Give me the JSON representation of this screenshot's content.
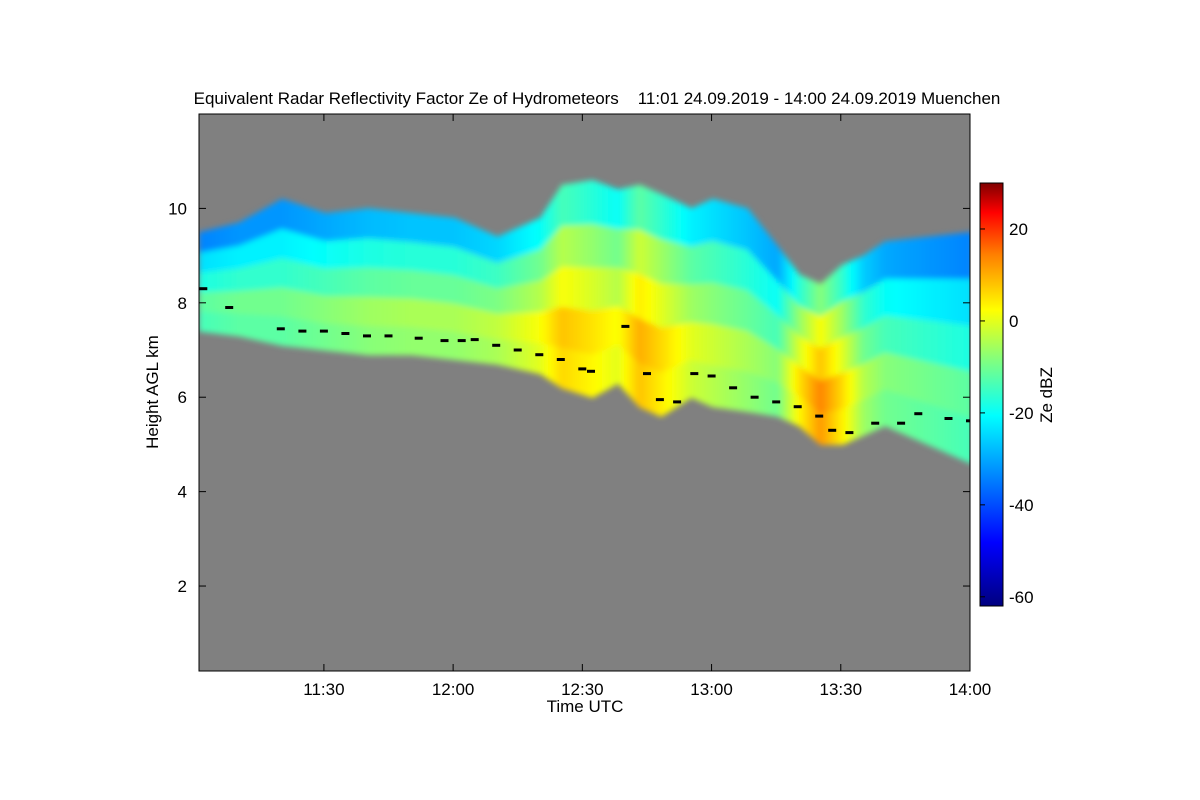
{
  "chart_data": {
    "type": "heatmap",
    "title": "Equivalent Radar Reflectivity Factor Ze of Hydrometeors    11:01 24.09.2019 - 14:00 24.09.2019 Muenchen",
    "xlabel": "Time UTC",
    "ylabel": "Height AGL km",
    "x_ticks": [
      "11:30",
      "12:00",
      "12:30",
      "13:00",
      "13:30",
      "14:00"
    ],
    "x_tick_minutes": [
      690,
      720,
      750,
      780,
      810,
      840
    ],
    "xlim_minutes": [
      661,
      840
    ],
    "y_ticks": [
      2,
      4,
      6,
      8,
      10
    ],
    "ylim": [
      0.2,
      12
    ],
    "colorbar": {
      "label": "Ze dBZ",
      "ticks": [
        20,
        0,
        -20,
        -40,
        -60
      ],
      "range": [
        -62,
        30
      ]
    },
    "colors": {
      "background": "#808080",
      "melting_layer": "#000000"
    },
    "cloud_profile": {
      "time_min": [
        661,
        670,
        680,
        690,
        700,
        710,
        720,
        730,
        740,
        745,
        752,
        758,
        763,
        768,
        775,
        780,
        788,
        795,
        800,
        805,
        810,
        815,
        820,
        830,
        840
      ],
      "top_km": [
        9.5,
        9.7,
        10.2,
        9.9,
        10.0,
        9.9,
        9.8,
        9.4,
        9.8,
        10.5,
        10.6,
        10.4,
        10.5,
        10.3,
        10.0,
        10.2,
        10.0,
        9.2,
        8.6,
        8.4,
        8.8,
        9.0,
        9.3,
        9.4,
        9.5
      ],
      "base_km": [
        7.4,
        7.3,
        7.1,
        7.0,
        6.9,
        6.9,
        6.8,
        6.7,
        6.5,
        6.2,
        6.0,
        6.3,
        5.8,
        5.6,
        6.0,
        5.8,
        5.7,
        5.6,
        5.4,
        5.0,
        5.0,
        5.2,
        5.4,
        5.0,
        4.6
      ],
      "ze_dbz": [
        -12,
        -10,
        -10,
        -8,
        -6,
        -5,
        -5,
        -3,
        2,
        8,
        5,
        2,
        10,
        6,
        0,
        -2,
        -5,
        -8,
        5,
        14,
        6,
        -4,
        -8,
        -10,
        -12
      ]
    },
    "melting_layer_km": [
      [
        662,
        8.3
      ],
      [
        668,
        7.9
      ],
      [
        680,
        7.45
      ],
      [
        685,
        7.4
      ],
      [
        690,
        7.4
      ],
      [
        695,
        7.35
      ],
      [
        700,
        7.3
      ],
      [
        705,
        7.3
      ],
      [
        712,
        7.25
      ],
      [
        718,
        7.2
      ],
      [
        722,
        7.2
      ],
      [
        725,
        7.22
      ],
      [
        730,
        7.1
      ],
      [
        735,
        7.0
      ],
      [
        740,
        6.9
      ],
      [
        745,
        6.8
      ],
      [
        750,
        6.6
      ],
      [
        752,
        6.55
      ],
      [
        760,
        7.5
      ],
      [
        765,
        6.5
      ],
      [
        768,
        5.95
      ],
      [
        772,
        5.9
      ],
      [
        776,
        6.5
      ],
      [
        780,
        6.45
      ],
      [
        785,
        6.2
      ],
      [
        790,
        6.0
      ],
      [
        795,
        5.9
      ],
      [
        800,
        5.8
      ],
      [
        805,
        5.6
      ],
      [
        808,
        5.3
      ],
      [
        812,
        5.25
      ],
      [
        818,
        5.45
      ],
      [
        824,
        5.45
      ],
      [
        828,
        5.65
      ],
      [
        835,
        5.55
      ],
      [
        840,
        5.5
      ]
    ],
    "legend": "none",
    "grid": false
  }
}
